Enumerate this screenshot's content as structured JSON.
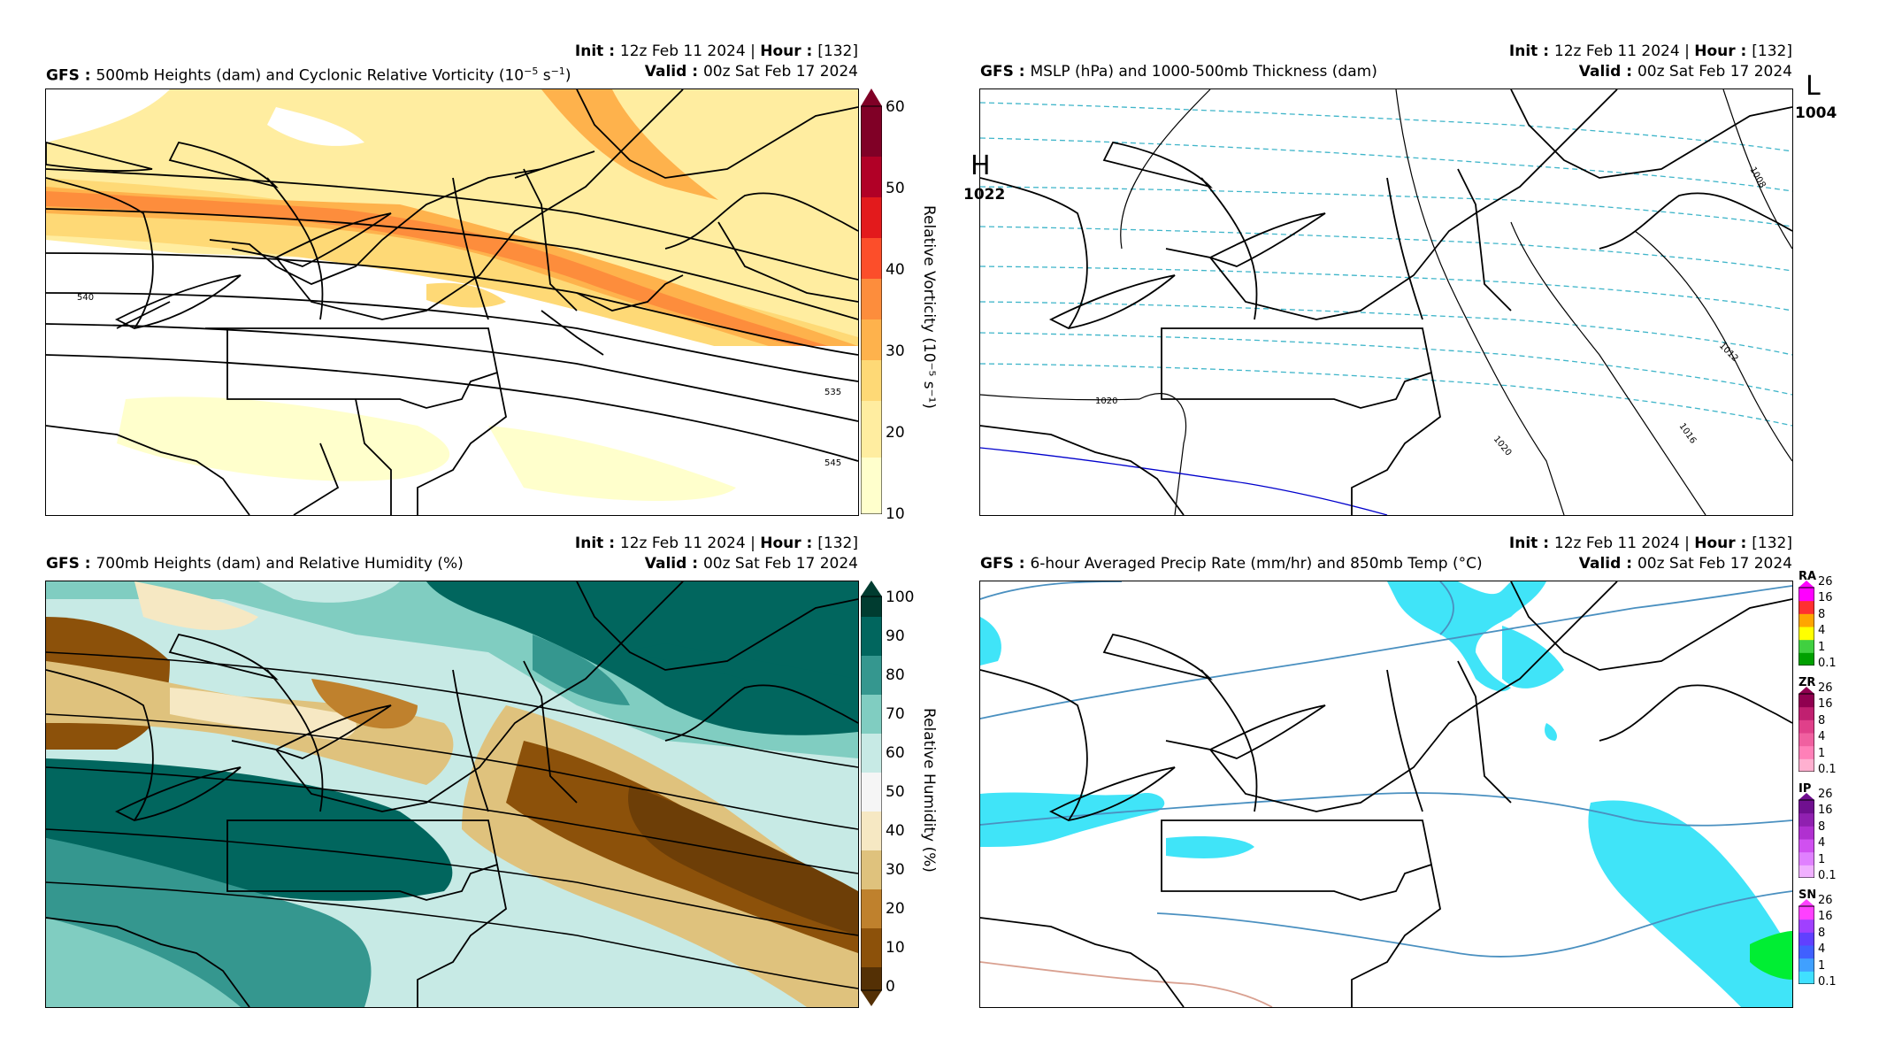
{
  "common": {
    "model": "GFS",
    "init_label": "Init",
    "init_value": "12z Feb 11 2024",
    "hour_label": "Hour",
    "hour_value": "[132]",
    "valid_label": "Valid",
    "valid_value": "00z Sat Feb 17 2024"
  },
  "panels": {
    "vort": {
      "title": "500mb Heights (dam) and Cyclonic Relative Vorticity (10",
      "title_exp": "−5",
      "title_tail": " s",
      "title_exp2": "−1",
      "title_end": ")",
      "colorbar_label": "Relative Vorticity (10⁻⁵ s⁻¹)",
      "colorbar_ticks": [
        "60",
        "50",
        "40",
        "30",
        "20",
        "10"
      ],
      "contour_labels": [
        "540",
        "535",
        "545"
      ],
      "colors": [
        "#ffffcc",
        "#ffeda0",
        "#fed976",
        "#feb24c",
        "#fd8d3c",
        "#fc4e2a",
        "#e31a1c",
        "#b10026",
        "#800026"
      ]
    },
    "mslp": {
      "title": "MSLP (hPa) and 1000-500mb Thickness (dam)",
      "contour_labels": [
        "1008",
        "1012",
        "1016",
        "1020",
        "1020"
      ],
      "high_symbol": "H",
      "high_value": "1022",
      "low_symbol": "L",
      "low_value": "1004",
      "high_color": "#0000ff",
      "low_color": "#ff0000",
      "thickness_color": "#3fb5c9"
    },
    "rh": {
      "title": "700mb Heights (dam) and Relative Humidity (%)",
      "colorbar_label": "Relative Humidity (%)",
      "colorbar_ticks": [
        "100",
        "90",
        "80",
        "70",
        "60",
        "50",
        "40",
        "30",
        "20",
        "10",
        "0"
      ],
      "moist_color": "#01665e",
      "dry_color": "#8c510a"
    },
    "precip": {
      "title": "6-hour Averaged Precip Rate (mm/hr) and 850mb Temp (°C)",
      "ptypes": [
        {
          "code": "RA",
          "ticks": [
            "26",
            "16",
            "8",
            "4",
            "1",
            "0.1"
          ],
          "colors": [
            "#00a000",
            "#40d040",
            "#ffff00",
            "#ffa500",
            "#ff3030",
            "#ff00ff"
          ]
        },
        {
          "code": "ZR",
          "ticks": [
            "26",
            "16",
            "8",
            "4",
            "1",
            "0.1"
          ],
          "colors": [
            "#ffb0d0",
            "#ff80b8",
            "#f060a0",
            "#e0408a",
            "#c02070",
            "#900050"
          ]
        },
        {
          "code": "IP",
          "ticks": [
            "26",
            "16",
            "8",
            "4",
            "1",
            "0.1"
          ],
          "colors": [
            "#f0b0ff",
            "#e080ff",
            "#d050f0",
            "#b030d0",
            "#9020b0",
            "#701090"
          ]
        },
        {
          "code": "SN",
          "ticks": [
            "26",
            "16",
            "8",
            "4",
            "1",
            "0.1"
          ],
          "colors": [
            "#40e0ff",
            "#40a0ff",
            "#4060ff",
            "#6040ff",
            "#a040ff",
            "#ff40ff"
          ]
        }
      ],
      "snow_color": "#40e4f8",
      "rain_color": "#00ee33",
      "temp_line_color": "#4a90c0"
    }
  }
}
